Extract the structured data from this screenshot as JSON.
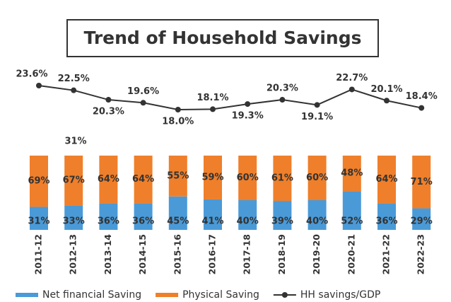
{
  "chart_data": {
    "type": "bar",
    "title": "Trend of Household Savings",
    "annotation": "31%",
    "categories": [
      "2011-12",
      "2012-13",
      "2013-14",
      "2014-15",
      "2015-16",
      "2016-17",
      "2017-18",
      "2018-19",
      "2019-20",
      "2020-21",
      "2021-22",
      "2022-23"
    ],
    "series": [
      {
        "name": "Net financial Saving",
        "color": "#4a9ad8",
        "values": [
          31,
          33,
          36,
          36,
          45,
          41,
          40,
          39,
          40,
          52,
          36,
          29
        ],
        "value_labels": [
          "31%",
          "33%",
          "36%",
          "36%",
          "45%",
          "41%",
          "40%",
          "39%",
          "40%",
          "52%",
          "36%",
          "29%"
        ]
      },
      {
        "name": "Physical Saving",
        "color": "#ef7f2a",
        "values": [
          69,
          67,
          64,
          64,
          55,
          59,
          60,
          61,
          60,
          48,
          64,
          71
        ],
        "value_labels": [
          "69%",
          "67%",
          "64%",
          "64%",
          "55%",
          "59%",
          "60%",
          "61%",
          "60%",
          "48%",
          "64%",
          "71%"
        ]
      },
      {
        "name": "HH savings/GDP",
        "color": "#333333",
        "type": "line",
        "values": [
          23.6,
          22.5,
          20.3,
          19.6,
          18.0,
          18.1,
          19.3,
          20.3,
          19.1,
          22.7,
          20.1,
          18.4
        ],
        "value_labels": [
          "23.6%",
          "22.5%",
          "20.3%",
          "19.6%",
          "18.0%",
          "18.1%",
          "19.3%",
          "20.3%",
          "19.1%",
          "22.7%",
          "20.1%",
          "18.4%"
        ]
      }
    ],
    "stacked": true,
    "legend": "bottom"
  }
}
